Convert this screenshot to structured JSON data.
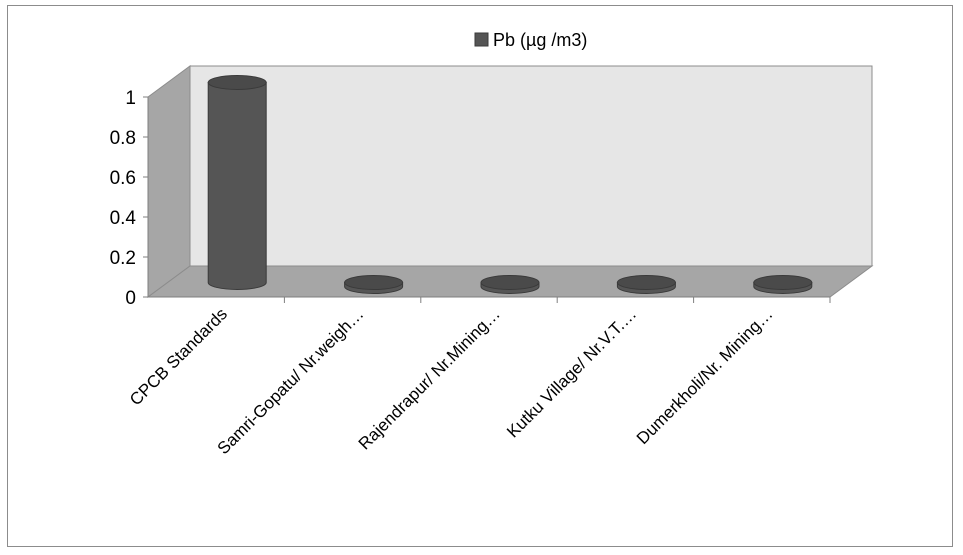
{
  "chart_data": {
    "type": "bar",
    "style": "3d-cylinder",
    "categories": [
      "CPCB Standards",
      "Samri-Gopatu/ Nr.weigh…",
      "Rajendrapur/ Nr.Mining…",
      "Kutku Village/ Nr.V.T.…",
      "Dumerkholi/Nr. Mining…"
    ],
    "series": [
      {
        "name": "Pb (µg /m3)",
        "values": [
          1,
          0,
          0,
          0,
          0
        ]
      }
    ],
    "yticks": [
      "0",
      "0.2",
      "0.4",
      "0.6",
      "0.8",
      "1"
    ],
    "ylim": [
      0,
      1
    ],
    "grid": false,
    "legend": "top",
    "colors": {
      "bar": "#555555",
      "back_wall": "#e6e6e6",
      "side_wall": "#a6a6a6",
      "floor": "#a6a6a6",
      "frame": "#8c8c8c"
    }
  }
}
